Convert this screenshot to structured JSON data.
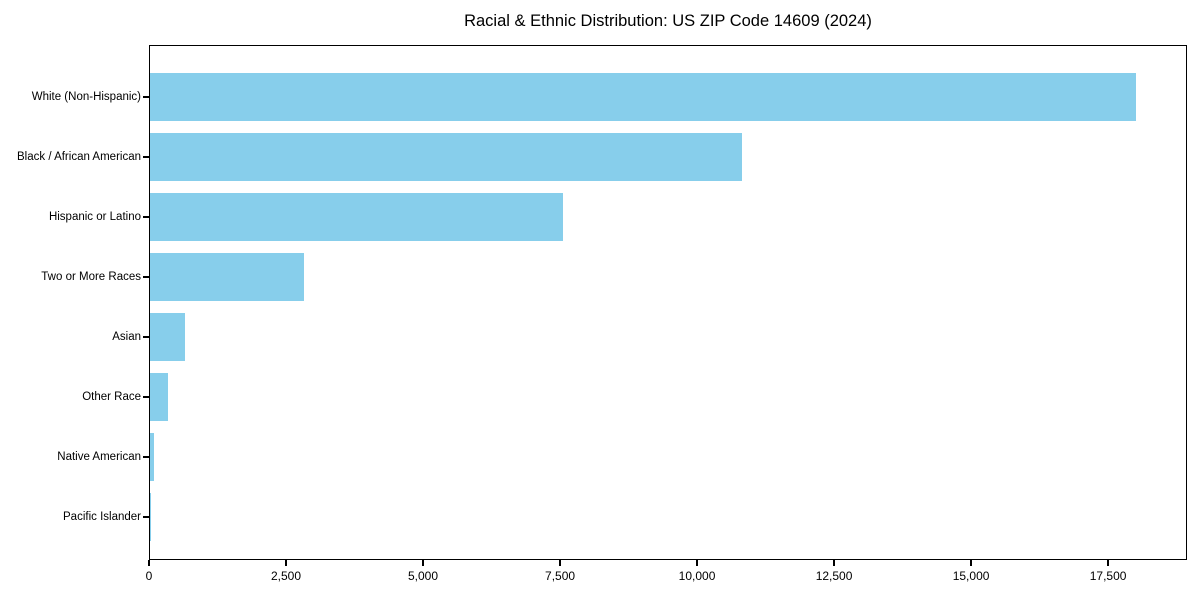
{
  "chart_data": {
    "type": "bar",
    "orientation": "horizontal",
    "title": "Racial & Ethnic Distribution: US ZIP Code 14609 (2024)",
    "categories": [
      "White (Non-Hispanic)",
      "Black / African American",
      "Hispanic or Latino",
      "Two or More Races",
      "Asian",
      "Other Race",
      "Native American",
      "Pacific Islander"
    ],
    "values": [
      18030,
      10820,
      7550,
      2810,
      640,
      330,
      70,
      10
    ],
    "xlabel": "",
    "ylabel": "",
    "xlim": [
      0,
      18940
    ],
    "x_ticks": [
      0,
      2500,
      5000,
      7500,
      10000,
      12500,
      15000,
      17500
    ],
    "x_tick_labels": [
      "0",
      "2,500",
      "5,000",
      "7,500",
      "10,000",
      "12,500",
      "15,000",
      "17,500"
    ],
    "grid": false,
    "legend": "none",
    "colors": {
      "bar": "#87CEEB",
      "axis": "#000000",
      "text": "#000000",
      "background": "#ffffff"
    }
  }
}
